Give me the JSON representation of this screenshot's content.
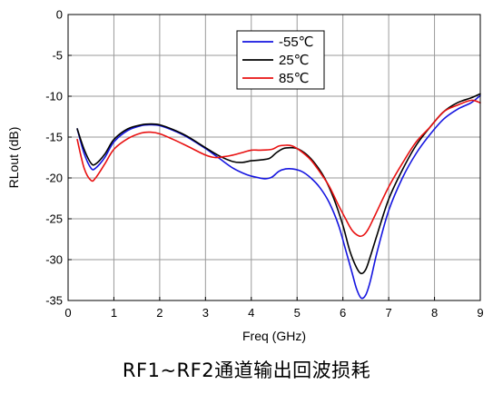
{
  "caption": "RF1~RF2通道输出回波损耗",
  "chart_data": {
    "type": "line",
    "xlabel": "Freq (GHz)",
    "ylabel": "RLout (dB)",
    "xlim": [
      0,
      9
    ],
    "ylim": [
      -35,
      0
    ],
    "xticks": [
      0,
      1,
      2,
      3,
      4,
      5,
      6,
      7,
      8,
      9
    ],
    "yticks": [
      0,
      -5,
      -10,
      -15,
      -20,
      -25,
      -30,
      -35
    ],
    "grid": true,
    "legend_position": "top-center",
    "series": [
      {
        "name": "-55℃",
        "color": "#1515e0",
        "x": [
          0.2,
          0.35,
          0.5,
          0.6,
          0.8,
          1.0,
          1.3,
          1.6,
          1.8,
          2.0,
          2.3,
          2.6,
          3.0,
          3.3,
          3.6,
          3.9,
          4.1,
          4.3,
          4.45,
          4.6,
          4.75,
          4.9,
          5.1,
          5.3,
          5.5,
          5.7,
          5.9,
          6.05,
          6.2,
          6.3,
          6.4,
          6.5,
          6.6,
          6.75,
          7.0,
          7.3,
          7.6,
          7.9,
          8.2,
          8.5,
          8.8,
          9.0
        ],
        "values": [
          -14.0,
          -17.0,
          -18.8,
          -18.8,
          -17.5,
          -15.6,
          -14.2,
          -13.6,
          -13.5,
          -13.6,
          -14.2,
          -15.0,
          -16.4,
          -17.6,
          -18.8,
          -19.6,
          -19.9,
          -20.1,
          -19.9,
          -19.2,
          -18.9,
          -18.9,
          -19.2,
          -20.0,
          -21.2,
          -23.0,
          -25.7,
          -28.6,
          -31.6,
          -33.6,
          -34.7,
          -34.3,
          -32.6,
          -29.0,
          -24.0,
          -20.0,
          -17.0,
          -14.7,
          -12.8,
          -11.6,
          -10.8,
          -9.9
        ]
      },
      {
        "name": "25℃",
        "color": "#000000",
        "x": [
          0.2,
          0.35,
          0.5,
          0.6,
          0.8,
          1.0,
          1.3,
          1.6,
          1.8,
          2.0,
          2.3,
          2.6,
          3.0,
          3.3,
          3.6,
          3.8,
          4.0,
          4.2,
          4.4,
          4.55,
          4.7,
          4.85,
          5.0,
          5.2,
          5.4,
          5.6,
          5.8,
          6.0,
          6.15,
          6.3,
          6.4,
          6.5,
          6.6,
          6.75,
          7.0,
          7.3,
          7.6,
          7.9,
          8.2,
          8.5,
          8.8,
          9.0
        ],
        "values": [
          -14.0,
          -16.5,
          -18.2,
          -18.3,
          -17.1,
          -15.3,
          -14.0,
          -13.5,
          -13.4,
          -13.5,
          -14.1,
          -14.9,
          -16.3,
          -17.3,
          -18.0,
          -18.1,
          -17.9,
          -17.8,
          -17.6,
          -16.9,
          -16.4,
          -16.3,
          -16.4,
          -17.1,
          -18.3,
          -20.0,
          -22.5,
          -25.8,
          -28.9,
          -31.0,
          -31.7,
          -31.2,
          -29.6,
          -26.9,
          -22.6,
          -19.0,
          -16.0,
          -13.8,
          -11.9,
          -10.8,
          -10.2,
          -9.7
        ]
      },
      {
        "name": "85℃",
        "color": "#e81010",
        "x": [
          0.2,
          0.35,
          0.5,
          0.6,
          0.8,
          1.0,
          1.3,
          1.6,
          1.8,
          2.0,
          2.3,
          2.6,
          3.0,
          3.2,
          3.4,
          3.6,
          3.8,
          4.0,
          4.2,
          4.45,
          4.6,
          4.75,
          4.9,
          5.1,
          5.3,
          5.5,
          5.7,
          5.9,
          6.05,
          6.2,
          6.35,
          6.45,
          6.55,
          6.7,
          7.0,
          7.3,
          7.6,
          7.9,
          8.2,
          8.5,
          8.8,
          9.0
        ],
        "values": [
          -15.3,
          -18.8,
          -20.3,
          -20.0,
          -18.3,
          -16.5,
          -15.2,
          -14.5,
          -14.4,
          -14.6,
          -15.3,
          -16.1,
          -17.2,
          -17.5,
          -17.4,
          -17.2,
          -16.9,
          -16.6,
          -16.6,
          -16.5,
          -16.1,
          -16.0,
          -16.1,
          -16.8,
          -17.8,
          -19.3,
          -21.0,
          -23.3,
          -24.9,
          -26.4,
          -27.1,
          -27.0,
          -26.3,
          -24.6,
          -21.1,
          -18.2,
          -15.6,
          -13.8,
          -11.9,
          -11.1,
          -10.5,
          -10.8
        ]
      }
    ]
  }
}
